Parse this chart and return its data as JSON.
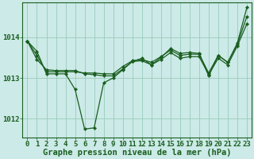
{
  "title": "Graphe pression niveau de la mer (hPa)",
  "bg_color": "#cceae7",
  "grid_color": "#99ccbb",
  "line_color": "#1a5e20",
  "marker_color": "#1a5e20",
  "xlim": [
    -0.5,
    23.5
  ],
  "ylim": [
    1011.55,
    1014.85
  ],
  "yticks": [
    1012,
    1013,
    1014
  ],
  "xticks": [
    0,
    1,
    2,
    3,
    4,
    5,
    6,
    7,
    8,
    9,
    10,
    11,
    12,
    13,
    14,
    15,
    16,
    17,
    18,
    19,
    20,
    21,
    22,
    23
  ],
  "series": [
    [
      1013.9,
      1013.65,
      1013.1,
      1013.1,
      1013.1,
      1012.72,
      1011.75,
      1011.78,
      1012.88,
      1013.0,
      1013.2,
      1013.4,
      1013.48,
      1013.32,
      1013.5,
      1013.72,
      1013.6,
      1013.62,
      1013.6,
      1013.05,
      1013.55,
      1013.38,
      1013.85,
      1014.72
    ],
    [
      1013.9,
      1013.55,
      1013.15,
      1013.15,
      1013.15,
      1013.15,
      1013.12,
      1013.12,
      1013.1,
      1013.1,
      1013.28,
      1013.42,
      1013.45,
      1013.38,
      1013.52,
      1013.68,
      1013.55,
      1013.58,
      1013.58,
      1013.12,
      1013.55,
      1013.38,
      1013.82,
      1014.5
    ],
    [
      1013.9,
      1013.45,
      1013.2,
      1013.18,
      1013.18,
      1013.18,
      1013.1,
      1013.08,
      1013.05,
      1013.05,
      1013.22,
      1013.4,
      1013.42,
      1013.32,
      1013.45,
      1013.62,
      1013.48,
      1013.52,
      1013.52,
      1013.08,
      1013.48,
      1013.32,
      1013.78,
      1014.32
    ]
  ],
  "tick_fontsize": 6.5,
  "title_fontsize": 7.5
}
